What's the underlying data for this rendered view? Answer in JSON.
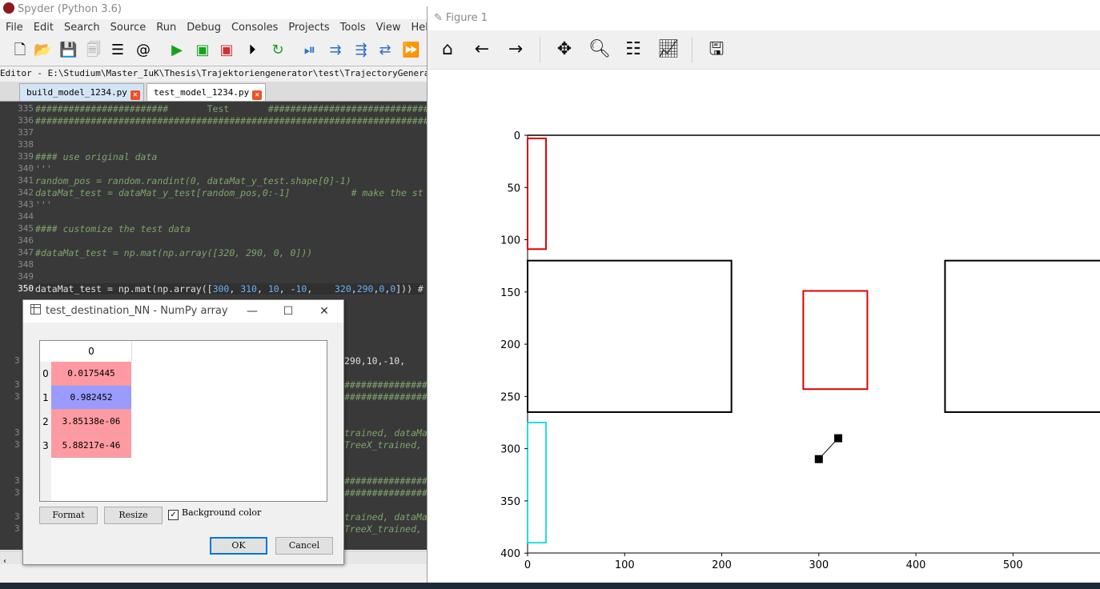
{
  "spyder": {
    "title": "Spyder (Python 3.6)",
    "menu": [
      "File",
      "Edit",
      "Search",
      "Source",
      "Run",
      "Debug",
      "Consoles",
      "Projects",
      "Tools",
      "View",
      "Help"
    ],
    "editor_path": "Editor - E:\\Studium\\Master_IuK\\Thesis\\Trajektoriengenerator\\test\\TrajectoryGenerator\\tra",
    "tabs": [
      {
        "label": "build_model_1234.py",
        "active": false
      },
      {
        "label": "test_model_1234.py",
        "active": true
      }
    ],
    "code_lines": [
      {
        "n": "335",
        "text": "########################       Test       ###################################",
        "cls": "hash"
      },
      {
        "n": "336",
        "text": "#############################################################################",
        "cls": "hash"
      },
      {
        "n": "337",
        "text": "",
        "cls": "plain"
      },
      {
        "n": "338",
        "text": "",
        "cls": "plain"
      },
      {
        "n": "339",
        "text": "#### use original data",
        "cls": "cmt"
      },
      {
        "n": "340",
        "text": "'''",
        "cls": "cmt"
      },
      {
        "n": "341",
        "text": "random_pos = random.randint(0, dataMat_y_test.shape[0]-1)",
        "cls": "cmt"
      },
      {
        "n": "342",
        "text": "dataMat_test = dataMat_y_test[random_pos,0:-1]           # make the st",
        "cls": "cmt"
      },
      {
        "n": "343",
        "text": "'''",
        "cls": "cmt"
      },
      {
        "n": "344",
        "text": "",
        "cls": "plain"
      },
      {
        "n": "345",
        "text": "#### customize the test data",
        "cls": "cmt"
      },
      {
        "n": "346",
        "text": "",
        "cls": "plain"
      },
      {
        "n": "347",
        "text": "#dataMat_test = np.mat(np.array([320, 290, 0, 0]))",
        "cls": "cmt"
      },
      {
        "n": "348",
        "text": "",
        "cls": "plain"
      },
      {
        "n": "349",
        "text": "",
        "cls": "plain"
      },
      {
        "n": "350",
        "text": "dataMat_test = np.mat(np.array([300, 310, 10, -10,    320,290,0,0])) #",
        "cls": "plain"
      }
    ],
    "partial_code": [
      {
        "n": "3",
        "text": "290,10,-10,    3",
        "cls": "plain"
      },
      {
        "n": "3",
        "text": "##################",
        "cls": "hash"
      },
      {
        "n": "3",
        "text": "##################",
        "cls": "hash"
      },
      {
        "n": "3",
        "text": "trained, dataMa",
        "cls": "cmt"
      },
      {
        "n": "3",
        "text": "TreeX_trained,",
        "cls": "cmt"
      },
      {
        "n": "3",
        "text": "##################",
        "cls": "hash"
      },
      {
        "n": "3",
        "text": "##################",
        "cls": "hash"
      },
      {
        "n": "3",
        "text": "trained, dataMa",
        "cls": "cmt"
      },
      {
        "n": "3",
        "text": "TreeX_trained,",
        "cls": "cmt"
      }
    ]
  },
  "dialog": {
    "title": "test_destination_NN - NumPy array",
    "column_header": "0",
    "rows": [
      {
        "index": "0",
        "value": "0.0175445",
        "color": "#ff9aa2"
      },
      {
        "index": "1",
        "value": "0.982452",
        "color": "#9a9aff"
      },
      {
        "index": "2",
        "value": "3.85138e-06",
        "color": "#ff9aa2"
      },
      {
        "index": "3",
        "value": "5.88217e-46",
        "color": "#ff9aa2"
      }
    ],
    "format_label": "Format",
    "resize_label": "Resize",
    "bgcolor_label": "Background color",
    "bgcolor_checked": true,
    "ok_label": "OK",
    "cancel_label": "Cancel"
  },
  "figure": {
    "title": "Figure 1",
    "toolbar_icons": [
      "home-icon",
      "back-arrow-icon",
      "forward-arrow-icon",
      "pan-icon",
      "zoom-icon",
      "configure-subplots-icon",
      "edit-axes-icon",
      "save-icon"
    ]
  },
  "chart_data": {
    "type": "scatter",
    "xlim": [
      0,
      590
    ],
    "ylim": [
      400,
      0
    ],
    "x_ticks": [
      0,
      100,
      200,
      300,
      400,
      500
    ],
    "y_ticks": [
      0,
      50,
      100,
      150,
      200,
      250,
      300,
      350,
      400
    ],
    "rectangles": [
      {
        "x0": 0,
        "y0": 3,
        "x1": 19,
        "y1": 109,
        "color": "#dd0000"
      },
      {
        "x0": 0,
        "y0": 120,
        "x1": 210,
        "y1": 265,
        "color": "#000000"
      },
      {
        "x0": 284,
        "y0": 149,
        "x1": 350,
        "y1": 243,
        "color": "#dd0000"
      },
      {
        "x0": 430,
        "y0": 120,
        "x1": 600,
        "y1": 265,
        "color": "#000000"
      },
      {
        "x0": 0,
        "y0": 275,
        "x1": 19,
        "y1": 390,
        "color": "#22dddd"
      },
      {
        "x0": 0,
        "y0": 0,
        "x1": 600,
        "y1": 0,
        "color": "#000000"
      }
    ],
    "points": [
      {
        "x": 300,
        "y": 310
      },
      {
        "x": 320,
        "y": 290
      }
    ],
    "arrow": {
      "from": [
        300,
        310
      ],
      "to": [
        320,
        290
      ]
    }
  }
}
